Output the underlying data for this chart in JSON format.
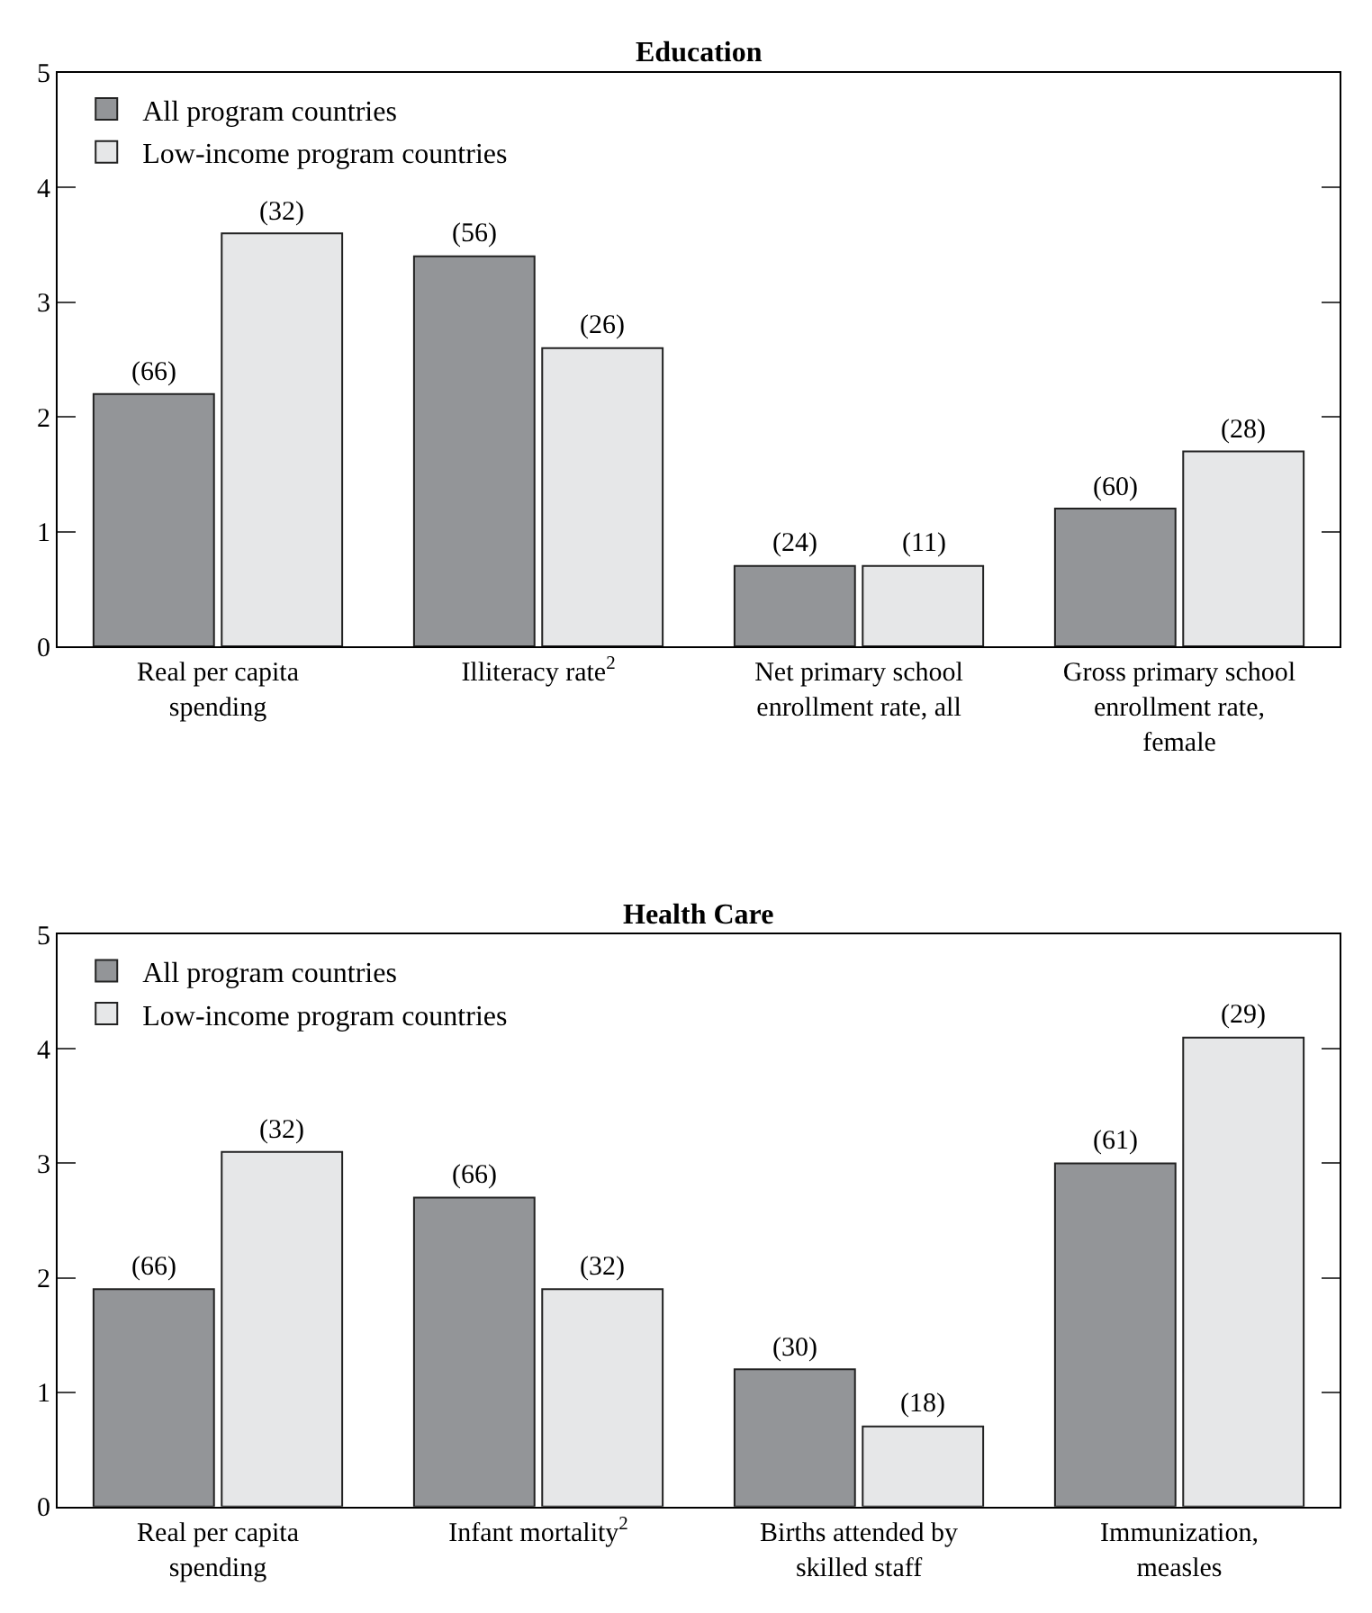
{
  "chart_data": [
    {
      "type": "bar",
      "title": "Education",
      "categories": [
        "Real per capita spending",
        "Illiteracy rate$^{2}$",
        "Net primary school enrollment rate, all",
        "Gross primary school enrollment rate, female"
      ],
      "ylim": [
        0,
        5
      ],
      "yticks": [
        0,
        1,
        2,
        3,
        4,
        5
      ],
      "grid": false,
      "legend": "top left",
      "annotations": [
        "(66)",
        "(56)",
        "(24)",
        "(60)",
        "(32)",
        "(26)",
        "(11)",
        "(28)"
      ],
      "series": [
        {
          "name": "All program countries",
          "color": "#939598",
          "values": [
            2.2,
            3.4,
            0.7,
            1.2
          ]
        },
        {
          "name": "Low-income program countries",
          "color": "#e6e7e8",
          "values": [
            3.6,
            2.6,
            0.7,
            1.7
          ]
        }
      ]
    },
    {
      "type": "bar",
      "title": "Health Care",
      "categories": [
        "Real per capita spending",
        "Infant mortality$^{2}$",
        "Births attended by skilled staff",
        "Immunization, measles"
      ],
      "ylim": [
        0,
        5
      ],
      "yticks": [
        0,
        1,
        2,
        3,
        4,
        5
      ],
      "grid": false,
      "legend": "top left",
      "annotations": [
        "(66)",
        "(66)",
        "(30)",
        "(61)",
        "(32)",
        "(32)",
        "(18)",
        "(29)"
      ],
      "series": [
        {
          "name": "All program countries",
          "color": "#939598",
          "values": [
            1.9,
            2.7,
            1.2,
            3.0
          ]
        },
        {
          "name": "Low-income program countries",
          "color": "#e6e7e8",
          "values": [
            3.1,
            1.9,
            0.7,
            4.1
          ]
        }
      ]
    }
  ]
}
